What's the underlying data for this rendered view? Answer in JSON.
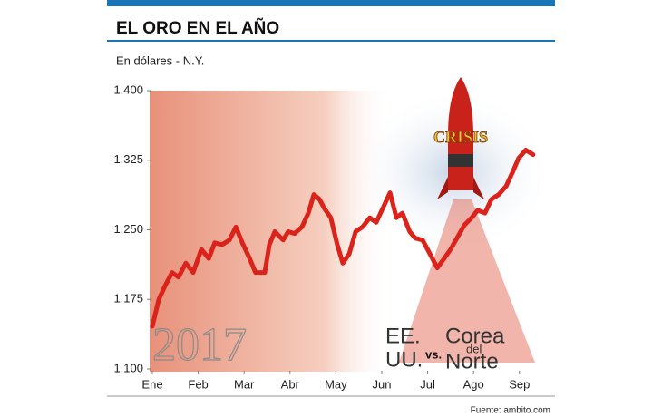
{
  "chart_data": {
    "type": "line",
    "title": "EL ORO EN EL AÑO",
    "subtitle": "En dólares - N.Y.",
    "source": "Fuente: ambito.com",
    "annotations": [
      "2017",
      "EE.",
      "UU.",
      "vs.",
      "Corea",
      "del",
      "Norte",
      "CRISIS"
    ],
    "x": [
      0,
      0.14,
      0.28,
      0.43,
      0.57,
      0.73,
      0.89,
      1.07,
      1.23,
      1.36,
      1.52,
      1.68,
      1.82,
      1.96,
      2.12,
      2.25,
      2.45,
      2.55,
      2.67,
      2.85,
      2.96,
      3.1,
      3.26,
      3.4,
      3.52,
      3.64,
      3.75,
      3.89,
      4.03,
      4.15,
      4.29,
      4.43,
      4.58,
      4.74,
      4.88,
      5.02,
      5.18,
      5.32,
      5.45,
      5.61,
      5.73,
      5.89,
      6.05,
      6.21,
      6.36,
      6.5,
      6.66,
      6.8,
      6.96,
      7.09,
      7.25,
      7.39,
      7.55,
      7.71,
      7.85,
      7.98,
      8.14,
      8.3
    ],
    "series": [
      {
        "color": "#d9231b",
        "values": [
          1146,
          1175,
          1190,
          1204,
          1199,
          1214,
          1204,
          1229,
          1219,
          1236,
          1234,
          1239,
          1253,
          1236,
          1219,
          1204,
          1204,
          1234,
          1248,
          1239,
          1248,
          1246,
          1253,
          1268,
          1288,
          1283,
          1273,
          1263,
          1234,
          1214,
          1224,
          1248,
          1253,
          1263,
          1258,
          1273,
          1290,
          1263,
          1268,
          1248,
          1241,
          1239,
          1224,
          1209,
          1219,
          1229,
          1243,
          1255,
          1263,
          1271,
          1268,
          1283,
          1288,
          1297,
          1312,
          1327,
          1336,
          1331
        ]
      }
    ],
    "xlim": [
      0,
      8.4
    ],
    "xticks": [
      {
        "value": 0,
        "label": "Ene"
      },
      {
        "value": 1,
        "label": "Feb"
      },
      {
        "value": 2,
        "label": "Mar"
      },
      {
        "value": 3,
        "label": "Abr"
      },
      {
        "value": 4,
        "label": "May"
      },
      {
        "value": 5,
        "label": "Jun"
      },
      {
        "value": 6,
        "label": "Jul"
      },
      {
        "value": 7,
        "label": "Ago"
      },
      {
        "value": 8,
        "label": "Sep"
      }
    ],
    "ylim": [
      1100,
      1400
    ],
    "yticks": [
      {
        "value": 1100,
        "label": "1.100"
      },
      {
        "value": 1175,
        "label": "1.175"
      },
      {
        "value": 1250,
        "label": "1.250"
      },
      {
        "value": 1325,
        "label": "1.325"
      },
      {
        "value": 1400,
        "label": "1.400"
      }
    ],
    "grid": false
  }
}
